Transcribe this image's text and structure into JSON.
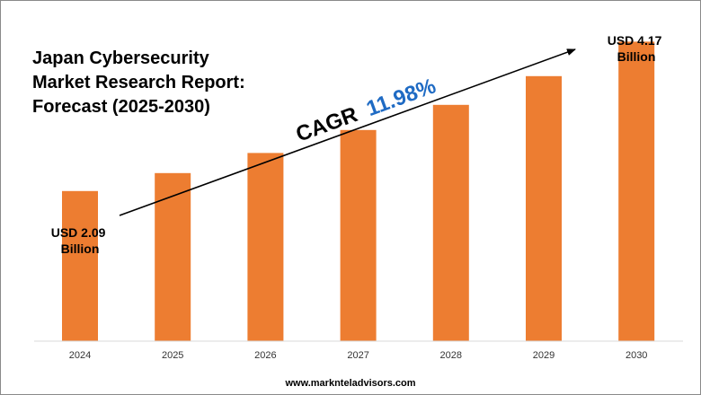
{
  "title_lines": [
    "Japan Cybersecurity",
    "Market Research Report:",
    "Forecast (2025-2030)"
  ],
  "footer_url": "www.marknteladvisors.com",
  "cagr": {
    "label": "CAGR",
    "value": "11.98%"
  },
  "callouts": {
    "start": {
      "line1": "USD 2.09",
      "line2": "Billion"
    },
    "end": {
      "line1": "USD 4.17",
      "line2": "Billion"
    }
  },
  "colors": {
    "bar": "#ed7d31",
    "cagr_value": "#1f6bc4",
    "axis": "#d9d9d9",
    "arrow": "#000000"
  },
  "chart_data": {
    "type": "bar",
    "title": "Japan Cybersecurity Market Research Report: Forecast (2025-2030)",
    "categories": [
      "2024",
      "2025",
      "2026",
      "2027",
      "2028",
      "2029",
      "2030"
    ],
    "values": [
      2.09,
      2.34,
      2.62,
      2.94,
      3.29,
      3.69,
      4.17
    ],
    "unit": "USD Billion",
    "ylim": [
      0,
      4.5
    ],
    "grid": false,
    "legend": "none"
  }
}
